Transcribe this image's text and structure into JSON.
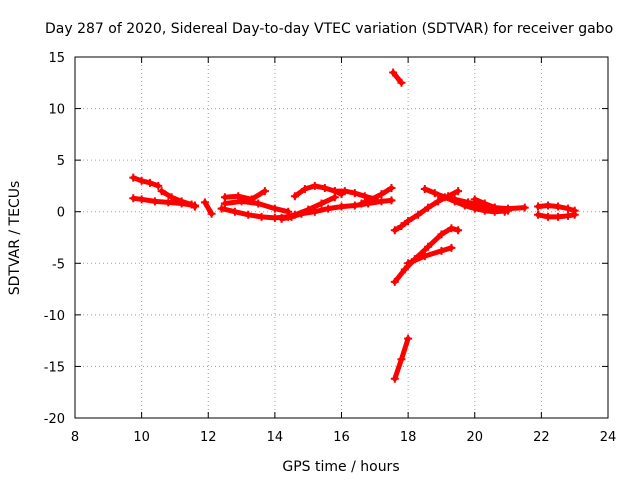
{
  "chart_data": {
    "type": "scatter",
    "title": "Day 287 of 2020, Sidereal Day-to-day VTEC variation (SDTVAR) for receiver gabo",
    "xlabel": "GPS time / hours",
    "ylabel": "SDTVAR / TECUs",
    "xlim": [
      8,
      24
    ],
    "ylim": [
      -20,
      15
    ],
    "xticks": [
      8,
      10,
      12,
      14,
      16,
      18,
      20,
      22,
      24
    ],
    "yticks": [
      -20,
      -15,
      -10,
      -5,
      0,
      5,
      10,
      15
    ],
    "grid": true,
    "color": "#ff0000",
    "marker": "plus",
    "series": [
      {
        "x": [
          9.75,
          10.0,
          10.25,
          10.5
        ],
        "y": [
          3.3,
          3.0,
          2.8,
          2.5
        ]
      },
      {
        "x": [
          9.75,
          10.0,
          10.4,
          10.8,
          11.2,
          11.6
        ],
        "y": [
          1.3,
          1.2,
          1.0,
          0.9,
          0.8,
          0.6
        ]
      },
      {
        "x": [
          10.6,
          10.9,
          11.2,
          11.5,
          11.6
        ],
        "y": [
          2.0,
          1.4,
          1.0,
          0.7,
          0.5
        ]
      },
      {
        "x": [
          11.9,
          12.1
        ],
        "y": [
          0.9,
          -0.2
        ]
      },
      {
        "x": [
          12.4,
          12.8,
          13.2,
          13.6,
          14.0,
          14.4
        ],
        "y": [
          0.3,
          0.0,
          -0.3,
          -0.5,
          -0.6,
          -0.5
        ]
      },
      {
        "x": [
          12.5,
          12.9,
          13.3,
          13.7
        ],
        "y": [
          1.4,
          1.5,
          1.2,
          2.0
        ]
      },
      {
        "x": [
          12.5,
          13.0,
          13.5,
          14.0,
          14.4
        ],
        "y": [
          0.8,
          1.0,
          0.8,
          0.3,
          0.0
        ]
      },
      {
        "x": [
          14.2,
          14.5,
          14.8,
          15.2,
          15.6,
          16.0,
          16.4,
          16.8,
          17.2,
          17.5
        ],
        "y": [
          -0.7,
          -0.5,
          -0.2,
          0.0,
          0.3,
          0.5,
          0.6,
          0.8,
          1.0,
          1.1
        ]
      },
      {
        "x": [
          14.6,
          14.9,
          15.2,
          15.5,
          15.8,
          16.0
        ],
        "y": [
          1.5,
          2.2,
          2.5,
          2.3,
          2.0,
          1.7
        ]
      },
      {
        "x": [
          15.8,
          16.1,
          16.4,
          16.7,
          17.0
        ],
        "y": [
          2.0,
          2.0,
          1.8,
          1.5,
          1.2
        ]
      },
      {
        "x": [
          14.2,
          14.6,
          15.0,
          15.4,
          15.8
        ],
        "y": [
          -0.6,
          -0.3,
          0.2,
          0.8,
          1.4
        ]
      },
      {
        "x": [
          16.6,
          16.9,
          17.2,
          17.5
        ],
        "y": [
          0.8,
          1.2,
          1.7,
          2.3
        ]
      },
      {
        "x": [
          17.55,
          17.8
        ],
        "y": [
          13.5,
          12.5
        ]
      },
      {
        "x": [
          17.6,
          17.8,
          18.0,
          18.3,
          18.6,
          18.9,
          19.2,
          19.5
        ],
        "y": [
          -1.8,
          -1.4,
          -0.9,
          -0.3,
          0.4,
          1.0,
          1.5,
          2.0
        ]
      },
      {
        "x": [
          18.5,
          18.8,
          19.1,
          19.4,
          19.7,
          20.0,
          20.3,
          20.6,
          21.0
        ],
        "y": [
          2.2,
          1.8,
          1.4,
          1.0,
          0.6,
          0.3,
          0.1,
          0.0,
          0.1
        ]
      },
      {
        "x": [
          19.0,
          19.4,
          19.8,
          20.2,
          20.6,
          21.0,
          21.5
        ],
        "y": [
          1.4,
          1.2,
          0.9,
          0.6,
          0.4,
          0.3,
          0.4
        ]
      },
      {
        "x": [
          20.0,
          20.3,
          20.6,
          20.9
        ],
        "y": [
          1.2,
          0.8,
          0.4,
          0.0
        ]
      },
      {
        "x": [
          17.6,
          17.9,
          18.2,
          18.6,
          19.0,
          19.3,
          19.5
        ],
        "y": [
          -6.8,
          -5.6,
          -4.6,
          -3.4,
          -2.2,
          -1.6,
          -1.8
        ]
      },
      {
        "x": [
          18.0,
          18.5,
          19.0,
          19.3
        ],
        "y": [
          -5.0,
          -4.3,
          -3.8,
          -3.5
        ]
      },
      {
        "x": [
          17.6,
          17.8,
          18.0
        ],
        "y": [
          -16.2,
          -14.3,
          -12.3
        ]
      },
      {
        "x": [
          21.9,
          22.2,
          22.5,
          22.8,
          23.0
        ],
        "y": [
          0.5,
          0.6,
          0.5,
          0.3,
          0.1
        ]
      },
      {
        "x": [
          21.9,
          22.2,
          22.5,
          22.8,
          23.0
        ],
        "y": [
          -0.3,
          -0.5,
          -0.5,
          -0.4,
          -0.3
        ]
      }
    ]
  }
}
